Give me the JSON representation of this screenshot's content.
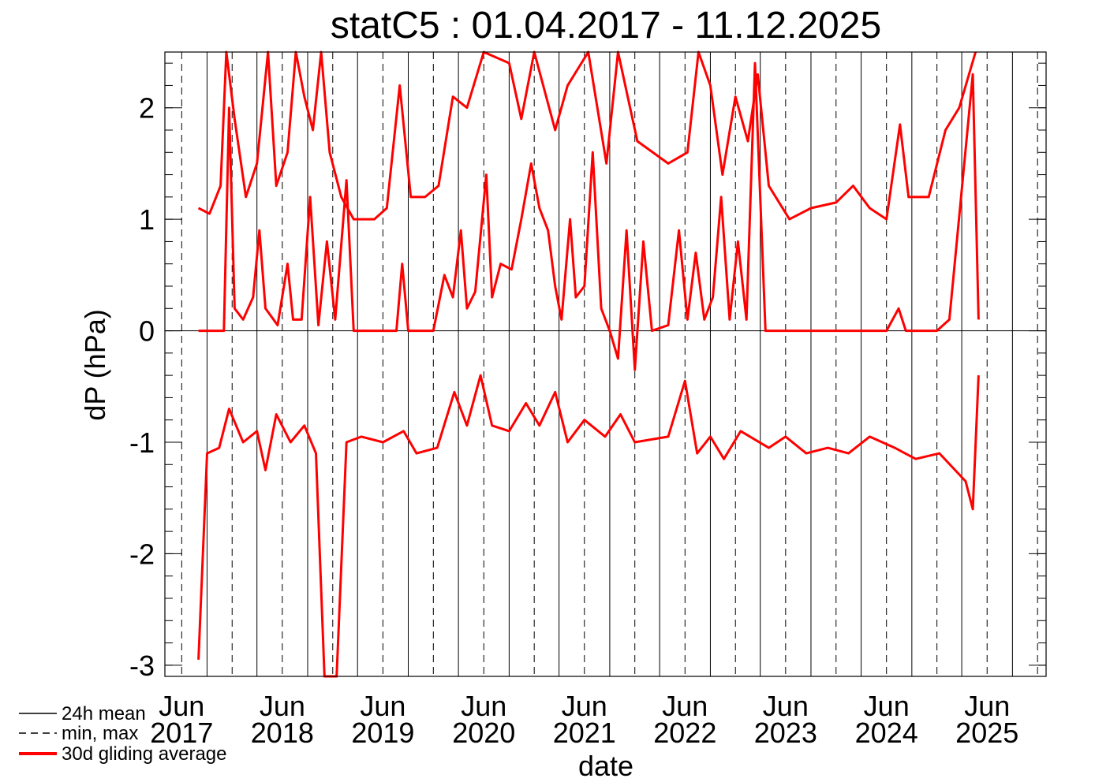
{
  "chart_data": {
    "type": "line",
    "title": "statC5 : 01.04.2017 - 11.12.2025",
    "xlabel": "date",
    "ylabel": "dP (hPa)",
    "ylim": [
      -3.1,
      2.5
    ],
    "xlim": [
      "2017-04-01",
      "2026-01-01"
    ],
    "yticks": [
      {
        "value": 2,
        "label": "2"
      },
      {
        "value": 1,
        "label": "1"
      },
      {
        "value": 0,
        "label": "0"
      },
      {
        "value": -1,
        "label": "-1"
      },
      {
        "value": -2,
        "label": "-2"
      },
      {
        "value": -3,
        "label": "-3"
      }
    ],
    "xticks": [
      {
        "date": "2017-06-01",
        "month": "Jun",
        "year": "2017"
      },
      {
        "date": "2018-06-01",
        "month": "Jun",
        "year": "2018"
      },
      {
        "date": "2019-06-01",
        "month": "Jun",
        "year": "2019"
      },
      {
        "date": "2020-06-01",
        "month": "Jun",
        "year": "2020"
      },
      {
        "date": "2021-06-01",
        "month": "Jun",
        "year": "2021"
      },
      {
        "date": "2022-06-01",
        "month": "Jun",
        "year": "2022"
      },
      {
        "date": "2023-06-01",
        "month": "Jun",
        "year": "2023"
      },
      {
        "date": "2024-06-01",
        "month": "Jun",
        "year": "2024"
      },
      {
        "date": "2025-06-01",
        "month": "Jun",
        "year": "2025"
      }
    ],
    "solid_month_lines": [
      "2017-09-01",
      "2018-03-01",
      "2018-09-01",
      "2019-03-01",
      "2019-09-01",
      "2020-03-01",
      "2020-09-01",
      "2021-03-01",
      "2021-09-01",
      "2022-03-01",
      "2022-09-01",
      "2023-03-01",
      "2023-09-01",
      "2024-03-01",
      "2024-09-01",
      "2025-03-01",
      "2025-09-01"
    ],
    "dashed_month_lines": [
      "2017-06-01",
      "2017-12-01",
      "2018-06-01",
      "2018-12-01",
      "2019-06-01",
      "2019-12-01",
      "2020-06-01",
      "2020-12-01",
      "2021-06-01",
      "2021-12-01",
      "2022-06-01",
      "2022-12-01",
      "2023-06-01",
      "2023-12-01",
      "2024-06-01",
      "2024-12-01",
      "2025-06-01",
      "2025-12-01"
    ],
    "legend": {
      "position": "bottom-left",
      "entries": [
        {
          "label": "24h mean",
          "style": "solid",
          "color": "#000000"
        },
        {
          "label": "min, max",
          "style": "dashed",
          "color": "#000000"
        },
        {
          "label": "30d gliding average",
          "style": "solid-thick",
          "color": "#ff0000"
        }
      ]
    },
    "series": [
      {
        "name": "30d gliding average (mean)",
        "color": "#ff0000",
        "points": [
          [
            "2017-08-01",
            -0.0
          ],
          [
            "2017-09-15",
            0.0
          ],
          [
            "2017-11-01",
            0.0
          ],
          [
            "2017-11-20",
            2.0
          ],
          [
            "2017-12-10",
            0.2
          ],
          [
            "2018-01-10",
            0.1
          ],
          [
            "2018-02-15",
            0.3
          ],
          [
            "2018-03-10",
            0.9
          ],
          [
            "2018-04-01",
            0.2
          ],
          [
            "2018-05-15",
            0.05
          ],
          [
            "2018-06-20",
            0.6
          ],
          [
            "2018-07-10",
            0.1
          ],
          [
            "2018-08-10",
            0.1
          ],
          [
            "2018-09-10",
            1.2
          ],
          [
            "2018-10-10",
            0.05
          ],
          [
            "2018-11-10",
            0.8
          ],
          [
            "2018-12-10",
            0.1
          ],
          [
            "2019-01-20",
            1.35
          ],
          [
            "2019-02-15",
            0.0
          ],
          [
            "2019-06-01",
            0.0
          ],
          [
            "2019-07-20",
            0.0
          ],
          [
            "2019-08-10",
            0.6
          ],
          [
            "2019-09-01",
            0.0
          ],
          [
            "2019-12-01",
            0.0
          ],
          [
            "2020-01-10",
            0.5
          ],
          [
            "2020-02-10",
            0.3
          ],
          [
            "2020-03-10",
            0.9
          ],
          [
            "2020-04-01",
            0.2
          ],
          [
            "2020-05-01",
            0.35
          ],
          [
            "2020-06-10",
            1.4
          ],
          [
            "2020-07-01",
            0.3
          ],
          [
            "2020-08-01",
            0.6
          ],
          [
            "2020-09-10",
            0.55
          ],
          [
            "2020-10-15",
            1.0
          ],
          [
            "2020-11-20",
            1.5
          ],
          [
            "2020-12-20",
            1.1
          ],
          [
            "2021-01-20",
            0.9
          ],
          [
            "2021-02-15",
            0.4
          ],
          [
            "2021-03-10",
            0.1
          ],
          [
            "2021-04-10",
            1.0
          ],
          [
            "2021-05-01",
            0.3
          ],
          [
            "2021-06-01",
            0.4
          ],
          [
            "2021-07-01",
            1.6
          ],
          [
            "2021-08-01",
            0.2
          ],
          [
            "2021-09-01",
            0.0
          ],
          [
            "2021-10-01",
            -0.25
          ],
          [
            "2021-11-01",
            0.9
          ],
          [
            "2021-12-01",
            -0.35
          ],
          [
            "2022-01-01",
            0.8
          ],
          [
            "2022-02-01",
            0.0
          ],
          [
            "2022-04-01",
            0.05
          ],
          [
            "2022-05-10",
            0.9
          ],
          [
            "2022-06-10",
            0.1
          ],
          [
            "2022-07-10",
            0.7
          ],
          [
            "2022-08-10",
            0.1
          ],
          [
            "2022-09-10",
            0.3
          ],
          [
            "2022-10-10",
            1.2
          ],
          [
            "2022-11-10",
            0.1
          ],
          [
            "2022-12-10",
            0.8
          ],
          [
            "2023-01-10",
            0.1
          ],
          [
            "2023-02-10",
            2.4
          ],
          [
            "2023-03-20",
            0.0
          ],
          [
            "2023-06-01",
            0.0
          ],
          [
            "2023-12-01",
            0.0
          ],
          [
            "2024-06-01",
            0.0
          ],
          [
            "2024-07-15",
            0.2
          ],
          [
            "2024-08-10",
            0.0
          ],
          [
            "2024-12-01",
            0.0
          ],
          [
            "2025-01-15",
            0.1
          ],
          [
            "2025-04-10",
            2.3
          ],
          [
            "2025-05-01",
            0.1
          ]
        ]
      },
      {
        "name": "30d gliding average (max)",
        "color": "#ff0000",
        "points": [
          [
            "2017-08-01",
            1.1
          ],
          [
            "2017-09-10",
            1.05
          ],
          [
            "2017-10-20",
            1.3
          ],
          [
            "2017-11-10",
            2.5
          ],
          [
            "2017-12-10",
            1.9
          ],
          [
            "2018-01-20",
            1.2
          ],
          [
            "2018-03-01",
            1.5
          ],
          [
            "2018-04-10",
            2.5
          ],
          [
            "2018-05-10",
            1.3
          ],
          [
            "2018-06-20",
            1.6
          ],
          [
            "2018-07-20",
            2.5
          ],
          [
            "2018-08-20",
            2.1
          ],
          [
            "2018-09-20",
            1.8
          ],
          [
            "2018-10-20",
            2.5
          ],
          [
            "2018-11-20",
            1.6
          ],
          [
            "2019-01-01",
            1.2
          ],
          [
            "2019-02-15",
            1.0
          ],
          [
            "2019-05-01",
            1.0
          ],
          [
            "2019-06-15",
            1.1
          ],
          [
            "2019-08-01",
            2.2
          ],
          [
            "2019-09-10",
            1.2
          ],
          [
            "2019-11-01",
            1.2
          ],
          [
            "2019-12-20",
            1.3
          ],
          [
            "2020-02-10",
            2.1
          ],
          [
            "2020-04-01",
            2.0
          ],
          [
            "2020-06-01",
            2.5
          ],
          [
            "2020-09-01",
            2.4
          ],
          [
            "2020-10-15",
            1.9
          ],
          [
            "2020-12-01",
            2.5
          ],
          [
            "2021-02-15",
            1.8
          ],
          [
            "2021-04-01",
            2.2
          ],
          [
            "2021-06-15",
            2.5
          ],
          [
            "2021-08-20",
            1.5
          ],
          [
            "2021-10-01",
            2.5
          ],
          [
            "2021-12-10",
            1.7
          ],
          [
            "2022-04-01",
            1.5
          ],
          [
            "2022-06-10",
            1.6
          ],
          [
            "2022-07-20",
            2.5
          ],
          [
            "2022-09-01",
            2.2
          ],
          [
            "2022-10-15",
            1.4
          ],
          [
            "2022-12-01",
            2.1
          ],
          [
            "2023-01-15",
            1.7
          ],
          [
            "2023-02-20",
            2.3
          ],
          [
            "2023-04-01",
            1.3
          ],
          [
            "2023-06-15",
            1.0
          ],
          [
            "2023-09-01",
            1.1
          ],
          [
            "2023-12-01",
            1.15
          ],
          [
            "2024-02-01",
            1.3
          ],
          [
            "2024-04-01",
            1.1
          ],
          [
            "2024-06-01",
            1.0
          ],
          [
            "2024-07-20",
            1.85
          ],
          [
            "2024-08-20",
            1.2
          ],
          [
            "2024-11-01",
            1.2
          ],
          [
            "2025-01-01",
            1.8
          ],
          [
            "2025-02-20",
            2.0
          ],
          [
            "2025-04-20",
            2.5
          ]
        ]
      },
      {
        "name": "30d gliding average (min)",
        "color": "#ff0000",
        "points": [
          [
            "2017-08-01",
            -2.95
          ],
          [
            "2017-09-01",
            -1.1
          ],
          [
            "2017-10-15",
            -1.05
          ],
          [
            "2017-11-20",
            -0.7
          ],
          [
            "2018-01-10",
            -1.0
          ],
          [
            "2018-03-01",
            -0.9
          ],
          [
            "2018-04-01",
            -1.25
          ],
          [
            "2018-05-10",
            -0.75
          ],
          [
            "2018-07-01",
            -1.0
          ],
          [
            "2018-08-20",
            -0.85
          ],
          [
            "2018-10-01",
            -1.1
          ],
          [
            "2018-11-01",
            -3.1
          ],
          [
            "2018-12-15",
            -3.1
          ],
          [
            "2019-01-20",
            -1.0
          ],
          [
            "2019-03-15",
            -0.95
          ],
          [
            "2019-06-01",
            -1.0
          ],
          [
            "2019-08-15",
            -0.9
          ],
          [
            "2019-10-01",
            -1.1
          ],
          [
            "2019-12-15",
            -1.05
          ],
          [
            "2020-02-15",
            -0.55
          ],
          [
            "2020-04-01",
            -0.85
          ],
          [
            "2020-05-20",
            -0.4
          ],
          [
            "2020-07-01",
            -0.85
          ],
          [
            "2020-09-01",
            -0.9
          ],
          [
            "2020-11-01",
            -0.65
          ],
          [
            "2020-12-20",
            -0.85
          ],
          [
            "2021-02-15",
            -0.55
          ],
          [
            "2021-04-01",
            -1.0
          ],
          [
            "2021-06-01",
            -0.8
          ],
          [
            "2021-08-15",
            -0.95
          ],
          [
            "2021-10-10",
            -0.75
          ],
          [
            "2021-12-01",
            -1.0
          ],
          [
            "2022-04-01",
            -0.95
          ],
          [
            "2022-06-01",
            -0.45
          ],
          [
            "2022-07-15",
            -1.1
          ],
          [
            "2022-09-01",
            -0.95
          ],
          [
            "2022-10-20",
            -1.15
          ],
          [
            "2022-12-20",
            -0.9
          ],
          [
            "2023-04-01",
            -1.05
          ],
          [
            "2023-06-01",
            -0.95
          ],
          [
            "2023-08-15",
            -1.1
          ],
          [
            "2023-11-01",
            -1.05
          ],
          [
            "2024-01-15",
            -1.1
          ],
          [
            "2024-04-01",
            -0.95
          ],
          [
            "2024-07-01",
            -1.05
          ],
          [
            "2024-09-15",
            -1.15
          ],
          [
            "2024-12-10",
            -1.1
          ],
          [
            "2025-03-15",
            -1.35
          ],
          [
            "2025-04-10",
            -1.6
          ],
          [
            "2025-05-01",
            -0.4
          ]
        ]
      }
    ]
  }
}
